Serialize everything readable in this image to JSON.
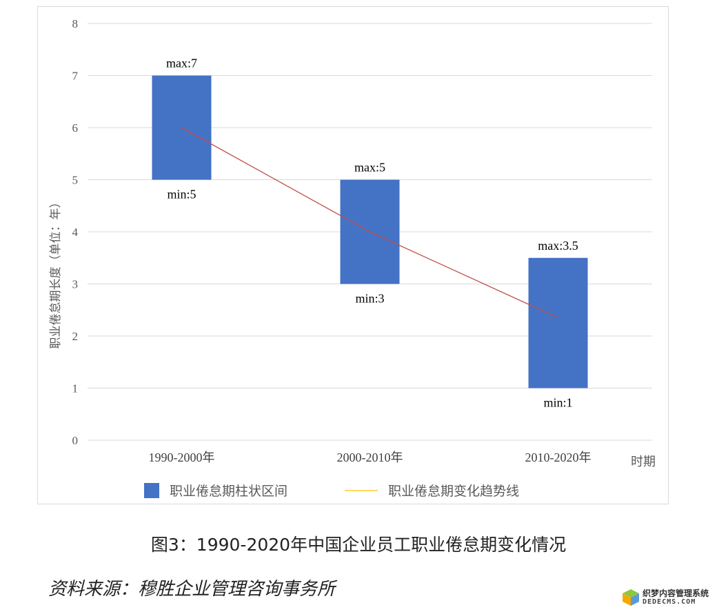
{
  "chart_data": {
    "type": "bar",
    "categories": [
      "1990-2000年",
      "2000-2010年",
      "2010-2020年"
    ],
    "series": [
      {
        "name": "职业倦怠期柱状区间",
        "kind": "floating-bar",
        "color": "#4472c4",
        "min": [
          5,
          3,
          1
        ],
        "max": [
          7,
          5,
          3.5
        ],
        "min_labels": [
          "min:5",
          "min:3",
          "min:1"
        ],
        "max_labels": [
          "max:7",
          "max:5",
          "max:3.5"
        ]
      },
      {
        "name": "职业倦怠期变化趋势线",
        "kind": "line",
        "color": "#c0504d",
        "legend_color": "#ffc000",
        "values": [
          6,
          4,
          2.35
        ]
      }
    ],
    "ylim": [
      0,
      8
    ],
    "yticks": [
      "0",
      "1",
      "2",
      "3",
      "4",
      "5",
      "6",
      "7",
      "8"
    ],
    "ylabel": "职业倦怠期长度（单位：年）",
    "xlabel": "时期",
    "grid": true,
    "legend_position": "bottom"
  },
  "caption": "图3：1990-2020年中国企业员工职业倦怠期变化情况",
  "source": "资料来源：穆胜企业管理咨询事务所",
  "watermark": {
    "line1": "织梦内容管理系统",
    "line2": "DEDECMS.COM"
  }
}
